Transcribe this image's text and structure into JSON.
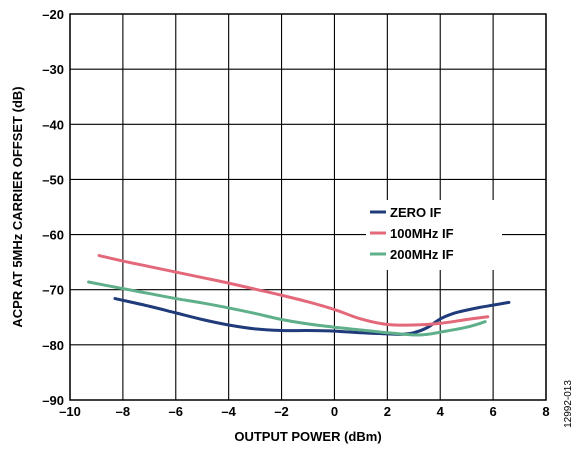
{
  "figure_id": "12992-013",
  "chart_data": {
    "type": "line",
    "title": "",
    "xlabel": "OUTPUT POWER (dBm)",
    "ylabel": "ACPR AT 5MHz CARRIER OFFSET (dB)",
    "xlim": [
      -10,
      8
    ],
    "ylim": [
      -90,
      -20
    ],
    "xticks": [
      -10,
      -8,
      -6,
      -4,
      -2,
      0,
      2,
      4,
      6,
      8
    ],
    "yticks": [
      -20,
      -30,
      -40,
      -50,
      -60,
      -70,
      -80,
      -90
    ],
    "xtick_labels": [
      "–10",
      "–8",
      "–6",
      "–4",
      "–2",
      "0",
      "2",
      "4",
      "6",
      "8"
    ],
    "ytick_labels": [
      "–20",
      "–30",
      "–40",
      "–50",
      "–60",
      "–70",
      "–80",
      "–90"
    ],
    "grid": true,
    "legend": "center-right",
    "series": [
      {
        "name": "ZERO IF",
        "color": "#1f3b7a",
        "x": [
          -8.3,
          -7,
          -6,
          -5,
          -4,
          -3,
          -2,
          -1,
          0,
          1,
          2,
          2.5,
          3,
          3.5,
          4,
          4.5,
          5,
          5.5,
          6,
          6.6
        ],
        "y": [
          -71.6,
          -73,
          -74.2,
          -75.4,
          -76.4,
          -77.1,
          -77.4,
          -77.4,
          -77.5,
          -77.8,
          -78,
          -78.1,
          -77.8,
          -76.9,
          -75.3,
          -74.3,
          -73.7,
          -73.2,
          -72.8,
          -72.3
        ]
      },
      {
        "name": "100MHz IF",
        "color": "#e2687a",
        "x": [
          -8.9,
          -8,
          -7,
          -6,
          -5,
          -4,
          -3,
          -2,
          -1,
          0,
          1,
          2,
          3,
          4,
          5,
          5.8
        ],
        "y": [
          -63.8,
          -64.8,
          -65.8,
          -66.8,
          -67.8,
          -68.8,
          -69.9,
          -71,
          -72.2,
          -73.6,
          -75.3,
          -76.3,
          -76.4,
          -76.1,
          -75.4,
          -74.9
        ]
      },
      {
        "name": "200MHz IF",
        "color": "#5fb08a",
        "x": [
          -9.3,
          -8,
          -7,
          -6,
          -5,
          -4,
          -3,
          -2,
          -1,
          0,
          1,
          2,
          3,
          3.5,
          4,
          5,
          5.7
        ],
        "y": [
          -68.6,
          -69.8,
          -70.7,
          -71.6,
          -72.4,
          -73.3,
          -74.3,
          -75.4,
          -76.2,
          -76.8,
          -77.3,
          -77.8,
          -78.2,
          -78.1,
          -77.7,
          -76.8,
          -75.8
        ]
      }
    ]
  }
}
